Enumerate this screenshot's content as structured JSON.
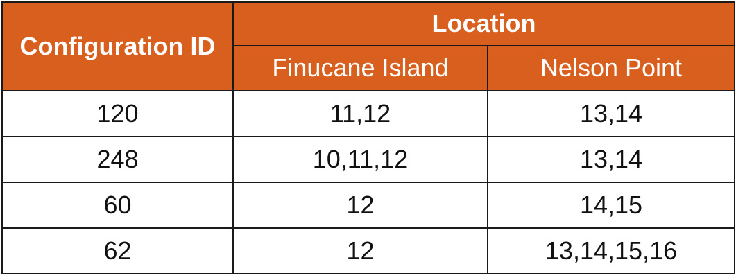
{
  "table": {
    "header": {
      "config_id": "Configuration ID",
      "location": "Location",
      "sub": [
        "Finucane Island",
        "Nelson Point"
      ]
    },
    "rows": [
      {
        "id": "120",
        "finucane": "11,12",
        "nelson": "13,14"
      },
      {
        "id": "248",
        "finucane": "10,11,12",
        "nelson": "13,14"
      },
      {
        "id": "60",
        "finucane": "12",
        "nelson": "14,15"
      },
      {
        "id": "62",
        "finucane": "12",
        "nelson": "13,14,15,16"
      }
    ]
  },
  "colors": {
    "header_bg": "#d95f1e",
    "header_text": "#ffffff",
    "border": "#1a1a1a"
  }
}
